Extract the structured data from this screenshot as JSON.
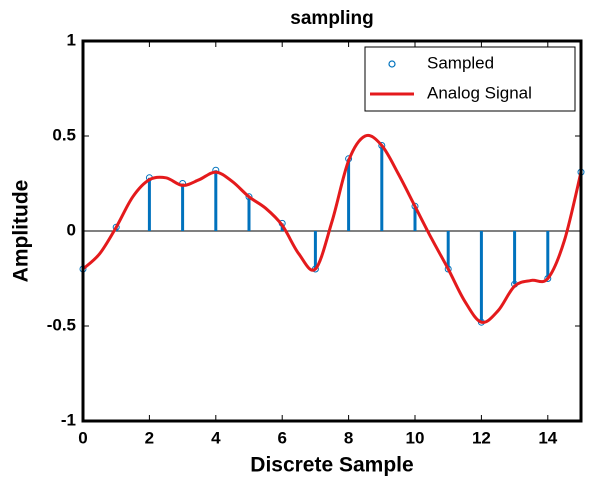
{
  "chart_data": {
    "type": "stem",
    "title": "sampling",
    "x_label": "Discrete Sample",
    "y_label": "Amplitude",
    "xlim": [
      0,
      15
    ],
    "xticks": [
      0,
      2,
      4,
      6,
      8,
      10,
      12,
      14
    ],
    "ylim": [
      -1,
      1
    ],
    "yticks": [
      -1,
      -0.5,
      0,
      0.5,
      1
    ],
    "legend_position": "northeast",
    "series": [
      {
        "name": "Sampled",
        "type": "stem",
        "color": "#0072bd",
        "x": [
          0,
          1,
          2,
          3,
          4,
          5,
          6,
          7,
          8,
          9,
          10,
          11,
          12,
          13,
          14,
          15
        ],
        "values": [
          -0.2,
          0.02,
          0.28,
          0.25,
          0.32,
          0.18,
          0.04,
          -0.2,
          0.38,
          0.45,
          0.13,
          -0.2,
          -0.48,
          -0.28,
          -0.25,
          0.31
        ]
      },
      {
        "name": "Analog Signal",
        "type": "line",
        "color": "#e41a1c",
        "x": [
          0,
          0.5,
          1,
          1.5,
          2,
          2.5,
          3,
          3.5,
          4,
          4.5,
          5,
          5.5,
          6,
          6.5,
          7,
          7.5,
          8,
          8.5,
          9,
          9.5,
          10,
          10.5,
          11,
          11.5,
          12,
          12.5,
          13,
          13.5,
          14,
          14.5,
          15
        ],
        "values": [
          -0.2,
          -0.12,
          0.02,
          0.18,
          0.27,
          0.28,
          0.24,
          0.27,
          0.31,
          0.26,
          0.18,
          0.12,
          0.03,
          -0.12,
          -0.2,
          0.05,
          0.37,
          0.5,
          0.45,
          0.3,
          0.13,
          -0.04,
          -0.2,
          -0.37,
          -0.48,
          -0.42,
          -0.29,
          -0.26,
          -0.25,
          -0.05,
          0.31
        ]
      }
    ]
  }
}
